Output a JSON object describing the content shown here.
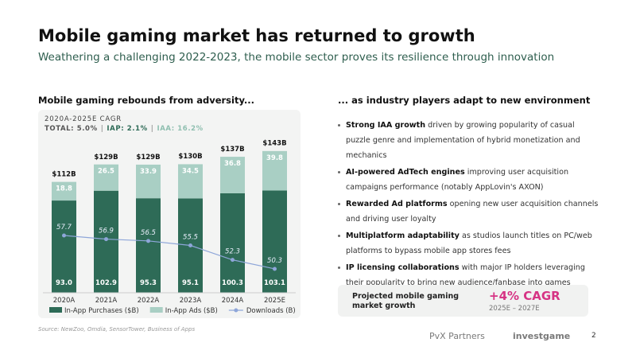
{
  "title": "Mobile gaming market has returned to growth",
  "subtitle": "Weathering a challenging 2022-2023, the mobile sector proves its resilience through innovation",
  "left_heading": "Mobile gaming rebounds from adversity...",
  "right_heading": "... as industry players adapt to new environment",
  "bullets": [
    {
      "bold": "Strong IAA growth",
      "text": "driven by growing popularity of casual puzzle genre and implementation of hybrid monetization and mechanics"
    },
    {
      "bold": "AI-powered AdTech engines",
      "text": "improving user acquisition campaigns performance (notably AppLovin's AXON)"
    },
    {
      "bold": "Rewarded Ad platforms",
      "text": "opening new user acquisition channels and driving user loyalty"
    },
    {
      "bold": "Multiplatform adaptability",
      "text": "as studios launch titles on PC/web platforms to bypass mobile app stores fees"
    },
    {
      "bold": "IP licensing collaborations",
      "text": "with major IP holders leveraging their popularity to bring new audience/fanbase into games"
    }
  ],
  "projection": {
    "label": "Projected mobile gaming market growth",
    "value": "+4% CAGR",
    "range": "2025E – 2027E"
  },
  "source": "Source: NewZoo, Omdia, SensorTower, Business of Apps",
  "logos": [
    "PvX Partners",
    "investgame"
  ],
  "page_number": "2",
  "chart_data": {
    "type": "bar",
    "stacked": true,
    "cagr": {
      "label": "2020A-2025E CAGR",
      "separator": "|",
      "items": [
        {
          "text": "TOTAL: 5.0%",
          "color": "#555555"
        },
        {
          "text": "IAP: 2.1%",
          "color": "#2e6b57"
        },
        {
          "text": "IAA: 16.2%",
          "color": "#8fbfb0"
        }
      ]
    },
    "categories": [
      "2020A",
      "2021A",
      "2022A",
      "2023A",
      "2024A",
      "2025E"
    ],
    "ylim": [
      0,
      150
    ],
    "y2lim": [
      45,
      78
    ],
    "series": [
      {
        "name": "In-App Purchases ($B)",
        "color": "#2e6b57",
        "values": [
          93.0,
          102.9,
          95.3,
          95.1,
          100.3,
          103.1
        ],
        "value_labels": [
          "93.0",
          "102.9",
          "95.3",
          "95.1",
          "100.3",
          "103.1"
        ]
      },
      {
        "name": "In-App Ads ($B)",
        "color": "#a9cfc4",
        "values": [
          18.8,
          26.5,
          33.9,
          34.5,
          36.8,
          39.8
        ]
      },
      {
        "name": "Downloads (B)",
        "type": "line",
        "axis": "y2",
        "color": "#8ea6d9",
        "values": [
          57.7,
          56.9,
          56.5,
          55.5,
          52.3,
          50.3
        ]
      }
    ],
    "totals": {
      "values": [
        112,
        129,
        129,
        130,
        137,
        143
      ],
      "value_labels": [
        "$112B",
        "$129B",
        "$129B",
        "$130B",
        "$137B",
        "$143B"
      ]
    }
  }
}
